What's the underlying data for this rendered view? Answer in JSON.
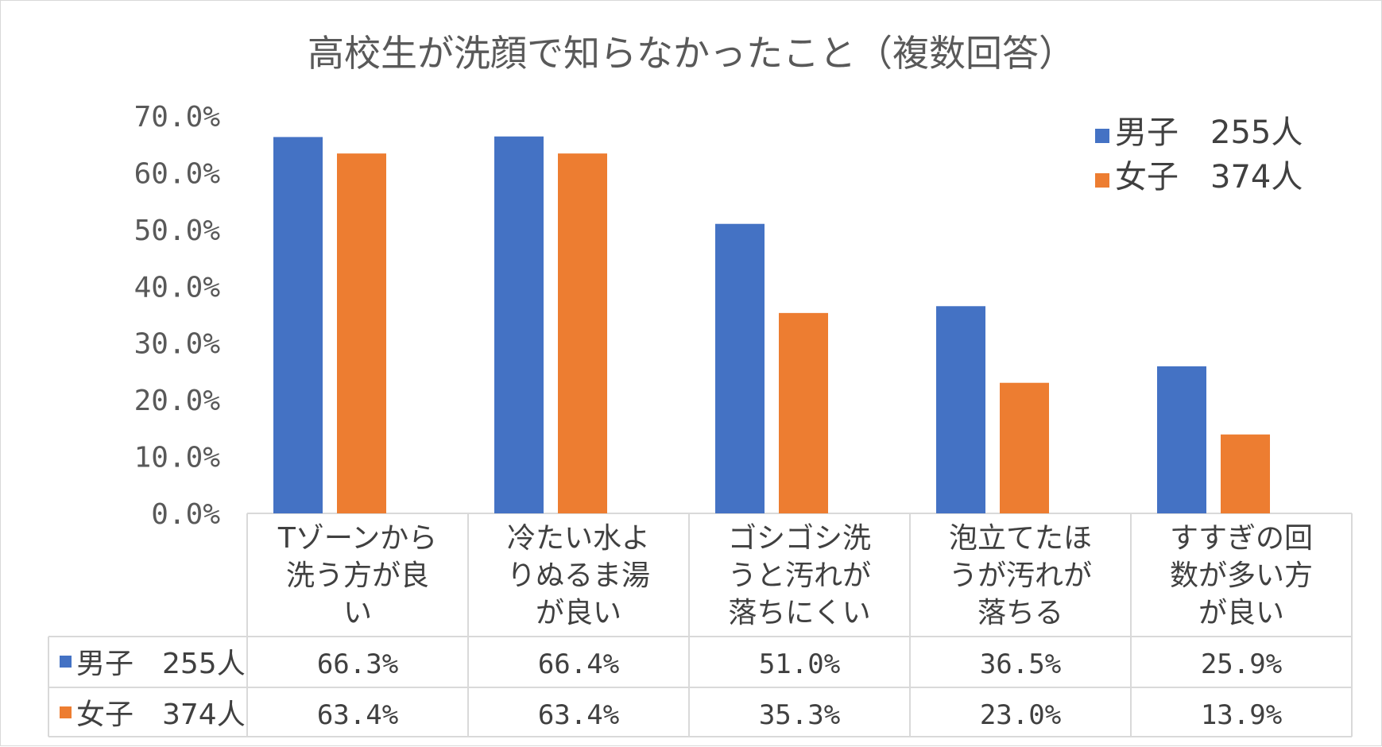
{
  "chart_data": {
    "type": "bar",
    "title": "高校生が洗顔で知らなかったこと（複数回答）",
    "categories": [
      [
        "Tゾーンから",
        "洗う方が良",
        "い"
      ],
      [
        "冷たい水よ",
        "りぬるま湯",
        "が良い"
      ],
      [
        "ゴシゴシ洗",
        "うと汚れが",
        "落ちにくい"
      ],
      [
        "泡立てたほ",
        "うが汚れが",
        "落ちる"
      ],
      [
        "すすぎの回",
        "数が多い方",
        "が良い"
      ]
    ],
    "series": [
      {
        "name": "男子　255人",
        "color": "#4472c4",
        "values": [
          66.3,
          66.4,
          51.0,
          36.5,
          25.9
        ],
        "labels": [
          "66.3%",
          "66.4%",
          "51.0%",
          "36.5%",
          "25.9%"
        ]
      },
      {
        "name": "女子　374人",
        "color": "#ed7d31",
        "values": [
          63.4,
          63.4,
          35.3,
          23.0,
          13.9
        ],
        "labels": [
          "63.4%",
          "63.4%",
          "35.3%",
          "23.0%",
          "13.9%"
        ]
      }
    ],
    "ylim": [
      0,
      70
    ],
    "yticks": [
      "0.0%",
      "10.0%",
      "20.0%",
      "30.0%",
      "40.0%",
      "50.0%",
      "60.0%",
      "70.0%"
    ],
    "legend_position": "top-right",
    "data_table": true
  }
}
